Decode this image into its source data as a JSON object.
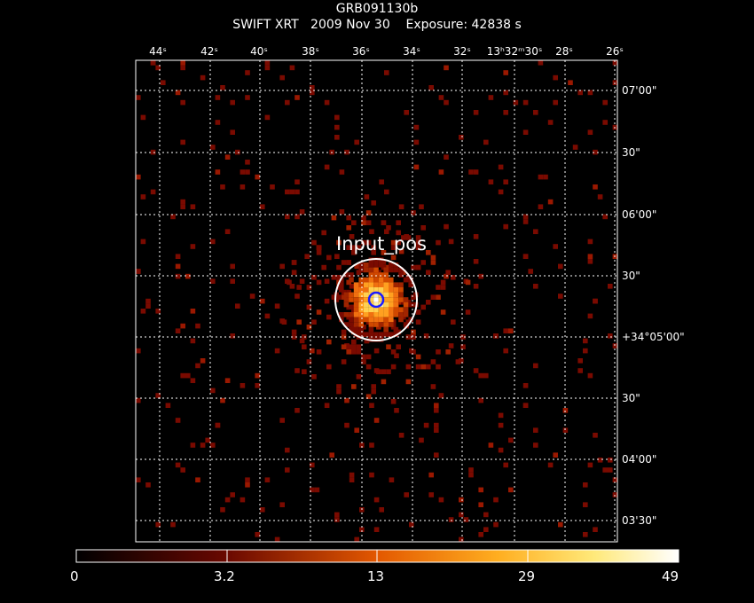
{
  "title": {
    "line1": "GRB091130b",
    "line2": "SWIFT XRT   2009 Nov 30    Exposure: 42838 s"
  },
  "chart_data": {
    "type": "heatmap",
    "ra_ticks": [
      "44s",
      "42s",
      "40s",
      "38s",
      "36s",
      "34s",
      "32s",
      "13h32m30s",
      "28s",
      "26s"
    ],
    "ra_tick_text": [
      "44ˢ",
      "42ˢ",
      "40ˢ",
      "38ˢ",
      "36ˢ",
      "34ˢ",
      "32ˢ",
      "13ʰ32ᵐ30ˢ",
      "28ˢ",
      "26ˢ"
    ],
    "dec_ticks": [
      "07'00\"",
      "30\"",
      "06'00\"",
      "30\"",
      "+34°05'00\"",
      "30\"",
      "04'00\"",
      "03'30\""
    ],
    "grid": true,
    "source_label": "Input_pos",
    "colorbar": {
      "ticks": [
        "0",
        "3.2",
        "13",
        "29",
        "49"
      ],
      "min": 0,
      "max": 49
    },
    "colors": {
      "background": "#000000",
      "grid": "#ffffff",
      "source_circle": "#ffffff",
      "position_circle": "#1a1aff",
      "counts_low": "#7a0a00",
      "counts_high": "#ffffff"
    }
  }
}
